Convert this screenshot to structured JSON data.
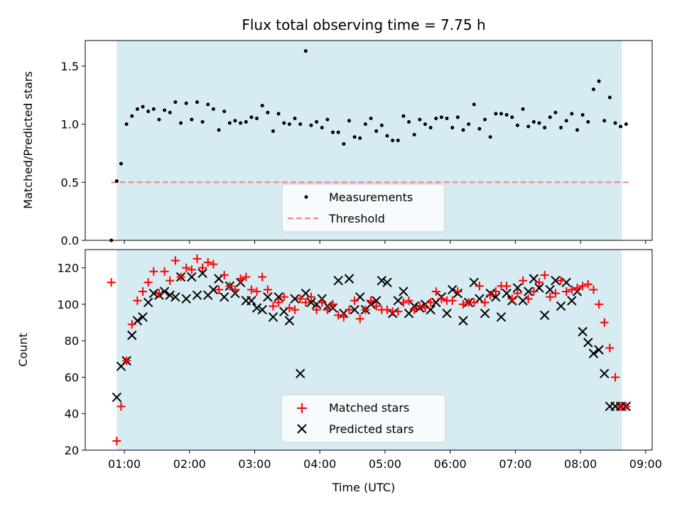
{
  "chart_data": [
    {
      "type": "scatter",
      "title": "Flux total observing time = 7.75 h",
      "xlabel": "",
      "ylabel": "Matched/Predicted stars",
      "ylim": [
        0,
        1.72
      ],
      "yticks": [
        "0.0",
        "0.5",
        "1.0",
        "1.5"
      ],
      "ytick_values": [
        0,
        0.5,
        1.0,
        1.5
      ],
      "x_axis": "time of day (UTC)",
      "xlim": [
        "00:24",
        "09:06"
      ],
      "observing_window": [
        "00:53",
        "08:38"
      ],
      "threshold": 0.5,
      "threshold_range": [
        "00:48",
        "08:45"
      ],
      "legend": {
        "placement": "lower center",
        "entries": [
          "Measurements",
          "Threshold"
        ]
      },
      "series": [
        {
          "name": "Measurements",
          "x": [
            "00:48",
            "00:53",
            "00:57",
            "01:02",
            "01:07",
            "01:12",
            "01:17",
            "01:22",
            "01:27",
            "01:32",
            "01:37",
            "01:42",
            "01:47",
            "01:52",
            "01:57",
            "02:02",
            "02:07",
            "02:12",
            "02:17",
            "02:22",
            "02:27",
            "02:32",
            "02:37",
            "02:42",
            "02:47",
            "02:52",
            "02:57",
            "03:02",
            "03:07",
            "03:12",
            "03:17",
            "03:22",
            "03:27",
            "03:32",
            "03:37",
            "03:42",
            "03:47",
            "03:52",
            "03:57",
            "04:02",
            "04:07",
            "04:12",
            "04:17",
            "04:22",
            "04:27",
            "04:32",
            "04:37",
            "04:42",
            "04:47",
            "04:52",
            "04:57",
            "05:02",
            "05:07",
            "05:12",
            "05:17",
            "05:22",
            "05:27",
            "05:32",
            "05:37",
            "05:42",
            "05:47",
            "05:52",
            "05:57",
            "06:02",
            "06:07",
            "06:12",
            "06:17",
            "06:22",
            "06:27",
            "06:32",
            "06:37",
            "06:42",
            "06:47",
            "06:52",
            "06:57",
            "07:02",
            "07:07",
            "07:12",
            "07:17",
            "07:22",
            "07:27",
            "07:32",
            "07:37",
            "07:42",
            "07:47",
            "07:52",
            "07:57",
            "08:02",
            "08:07",
            "08:12",
            "08:17",
            "08:22",
            "08:27",
            "08:32",
            "08:37",
            "08:42"
          ],
          "y": [
            0.0,
            0.51,
            0.66,
            1.0,
            1.07,
            1.13,
            1.15,
            1.11,
            1.13,
            1.04,
            1.12,
            1.1,
            1.19,
            1.01,
            1.18,
            1.04,
            1.19,
            1.02,
            1.17,
            1.13,
            0.95,
            1.11,
            1.01,
            1.03,
            1.01,
            1.02,
            1.06,
            1.05,
            1.16,
            1.1,
            0.94,
            1.09,
            1.01,
            1.0,
            1.05,
            1.0,
            1.63,
            0.99,
            1.02,
            0.97,
            1.04,
            0.93,
            0.93,
            0.83,
            1.03,
            0.89,
            0.88,
            1.0,
            1.05,
            0.94,
            0.99,
            0.9,
            0.86,
            0.86,
            1.07,
            1.02,
            0.91,
            1.04,
            1.0,
            0.97,
            1.05,
            1.06,
            1.05,
            0.97,
            1.06,
            0.95,
            1.0,
            1.17,
            0.96,
            1.04,
            0.89,
            1.09,
            1.09,
            1.08,
            1.06,
            0.99,
            1.13,
            0.98,
            1.02,
            1.01,
            0.97,
            1.06,
            1.1,
            0.97,
            1.03,
            1.09,
            0.95,
            1.08,
            1.02,
            1.3,
            1.37,
            1.03,
            1.23,
            1.01,
            0.98,
            1.0
          ],
          "color": "#000000"
        },
        {
          "name": "Threshold",
          "color": "#f08080"
        }
      ],
      "shade_color": "#add8e6"
    },
    {
      "type": "scatter",
      "title": "",
      "xlabel": "Time (UTC)",
      "ylabel": "Count",
      "ylim": [
        20,
        130
      ],
      "yticks": [
        "20",
        "40",
        "60",
        "80",
        "100",
        "120"
      ],
      "ytick_values": [
        20,
        40,
        60,
        80,
        100,
        120
      ],
      "x_axis": "time of day (UTC)",
      "xlim": [
        "00:24",
        "09:06"
      ],
      "xticks": [
        "01:00",
        "02:00",
        "03:00",
        "04:00",
        "05:00",
        "06:00",
        "07:00",
        "08:00",
        "09:00"
      ],
      "observing_window": [
        "00:53",
        "08:38"
      ],
      "legend": {
        "placement": "lower center",
        "entries": [
          "Matched stars",
          "Predicted stars"
        ]
      },
      "series": [
        {
          "name": "Matched stars",
          "marker": "+",
          "color": "#ff0000",
          "x": [
            "00:48",
            "00:53",
            "00:57",
            "01:02",
            "01:07",
            "01:12",
            "01:17",
            "01:22",
            "01:27",
            "01:32",
            "01:37",
            "01:42",
            "01:47",
            "01:52",
            "01:57",
            "02:02",
            "02:07",
            "02:12",
            "02:17",
            "02:22",
            "02:27",
            "02:32",
            "02:37",
            "02:42",
            "02:47",
            "02:52",
            "02:57",
            "03:02",
            "03:07",
            "03:12",
            "03:17",
            "03:22",
            "03:27",
            "03:32",
            "03:37",
            "03:42",
            "03:47",
            "03:52",
            "03:57",
            "04:02",
            "04:07",
            "04:12",
            "04:17",
            "04:22",
            "04:27",
            "04:32",
            "04:37",
            "04:42",
            "04:47",
            "04:52",
            "04:57",
            "05:02",
            "05:07",
            "05:12",
            "05:17",
            "05:22",
            "05:27",
            "05:32",
            "05:37",
            "05:42",
            "05:47",
            "05:52",
            "05:57",
            "06:02",
            "06:07",
            "06:12",
            "06:17",
            "06:22",
            "06:27",
            "06:32",
            "06:37",
            "06:42",
            "06:47",
            "06:52",
            "06:57",
            "07:02",
            "07:07",
            "07:12",
            "07:17",
            "07:22",
            "07:27",
            "07:32",
            "07:37",
            "07:42",
            "07:47",
            "07:52",
            "07:57",
            "08:02",
            "08:07",
            "08:12",
            "08:17",
            "08:22",
            "08:27",
            "08:32",
            "08:37",
            "08:42"
          ],
          "y": [
            112,
            25,
            44,
            69,
            89,
            102,
            107,
            112,
            118,
            106,
            118,
            113,
            124,
            115,
            120,
            119,
            125,
            120,
            123,
            122,
            108,
            116,
            110,
            108,
            114,
            115,
            108,
            107,
            115,
            108,
            99,
            101,
            104,
            98,
            97,
            103,
            101,
            104,
            97,
            101,
            97,
            100,
            94,
            93,
            97,
            102,
            92,
            97,
            102,
            99,
            97,
            97,
            96,
            96,
            101,
            102,
            97,
            99,
            98,
            101,
            107,
            103,
            102,
            102,
            107,
            100,
            101,
            101,
            110,
            101,
            105,
            107,
            110,
            110,
            103,
            106,
            113,
            103,
            107,
            112,
            116,
            104,
            106,
            113,
            107,
            108,
            109,
            110,
            111,
            108,
            100,
            90,
            76,
            60,
            44,
            44
          ]
        },
        {
          "name": "Predicted stars",
          "marker": "x",
          "color": "#000000",
          "x": [
            "00:53",
            "00:57",
            "01:02",
            "01:07",
            "01:12",
            "01:17",
            "01:22",
            "01:27",
            "01:32",
            "01:37",
            "01:42",
            "01:47",
            "01:52",
            "01:57",
            "02:02",
            "02:07",
            "02:12",
            "02:17",
            "02:22",
            "02:27",
            "02:32",
            "02:37",
            "02:42",
            "02:47",
            "02:52",
            "02:57",
            "03:02",
            "03:07",
            "03:12",
            "03:17",
            "03:22",
            "03:27",
            "03:32",
            "03:37",
            "03:42",
            "03:47",
            "03:52",
            "03:57",
            "04:02",
            "04:07",
            "04:12",
            "04:17",
            "04:22",
            "04:27",
            "04:32",
            "04:37",
            "04:42",
            "04:47",
            "04:52",
            "04:57",
            "05:02",
            "05:07",
            "05:12",
            "05:17",
            "05:22",
            "05:27",
            "05:32",
            "05:37",
            "05:42",
            "05:47",
            "05:52",
            "05:57",
            "06:02",
            "06:07",
            "06:12",
            "06:17",
            "06:22",
            "06:27",
            "06:32",
            "06:37",
            "06:42",
            "06:47",
            "06:52",
            "06:57",
            "07:02",
            "07:07",
            "07:12",
            "07:17",
            "07:22",
            "07:27",
            "07:32",
            "07:37",
            "07:42",
            "07:47",
            "07:52",
            "07:57",
            "08:02",
            "08:07",
            "08:12",
            "08:17",
            "08:22",
            "08:27",
            "08:32",
            "08:37",
            "08:42"
          ],
          "y": [
            49,
            66,
            69,
            83,
            91,
            93,
            101,
            106,
            105,
            107,
            105,
            104,
            115,
            103,
            115,
            105,
            117,
            105,
            108,
            114,
            104,
            110,
            106,
            112,
            102,
            102,
            98,
            97,
            104,
            93,
            104,
            96,
            91,
            103,
            62,
            106,
            101,
            100,
            103,
            99,
            98,
            113,
            95,
            114,
            97,
            104,
            97,
            100,
            102,
            113,
            112,
            95,
            102,
            107,
            95,
            99,
            98,
            100,
            97,
            101,
            104,
            95,
            108,
            106,
            91,
            101,
            112,
            103,
            95,
            106,
            104,
            93,
            106,
            102,
            109,
            102,
            107,
            114,
            109,
            94,
            108,
            113,
            99,
            112,
            102,
            107,
            85,
            79,
            73,
            75,
            62,
            44,
            44,
            44,
            44
          ]
        }
      ],
      "shade_color": "#add8e6"
    }
  ]
}
